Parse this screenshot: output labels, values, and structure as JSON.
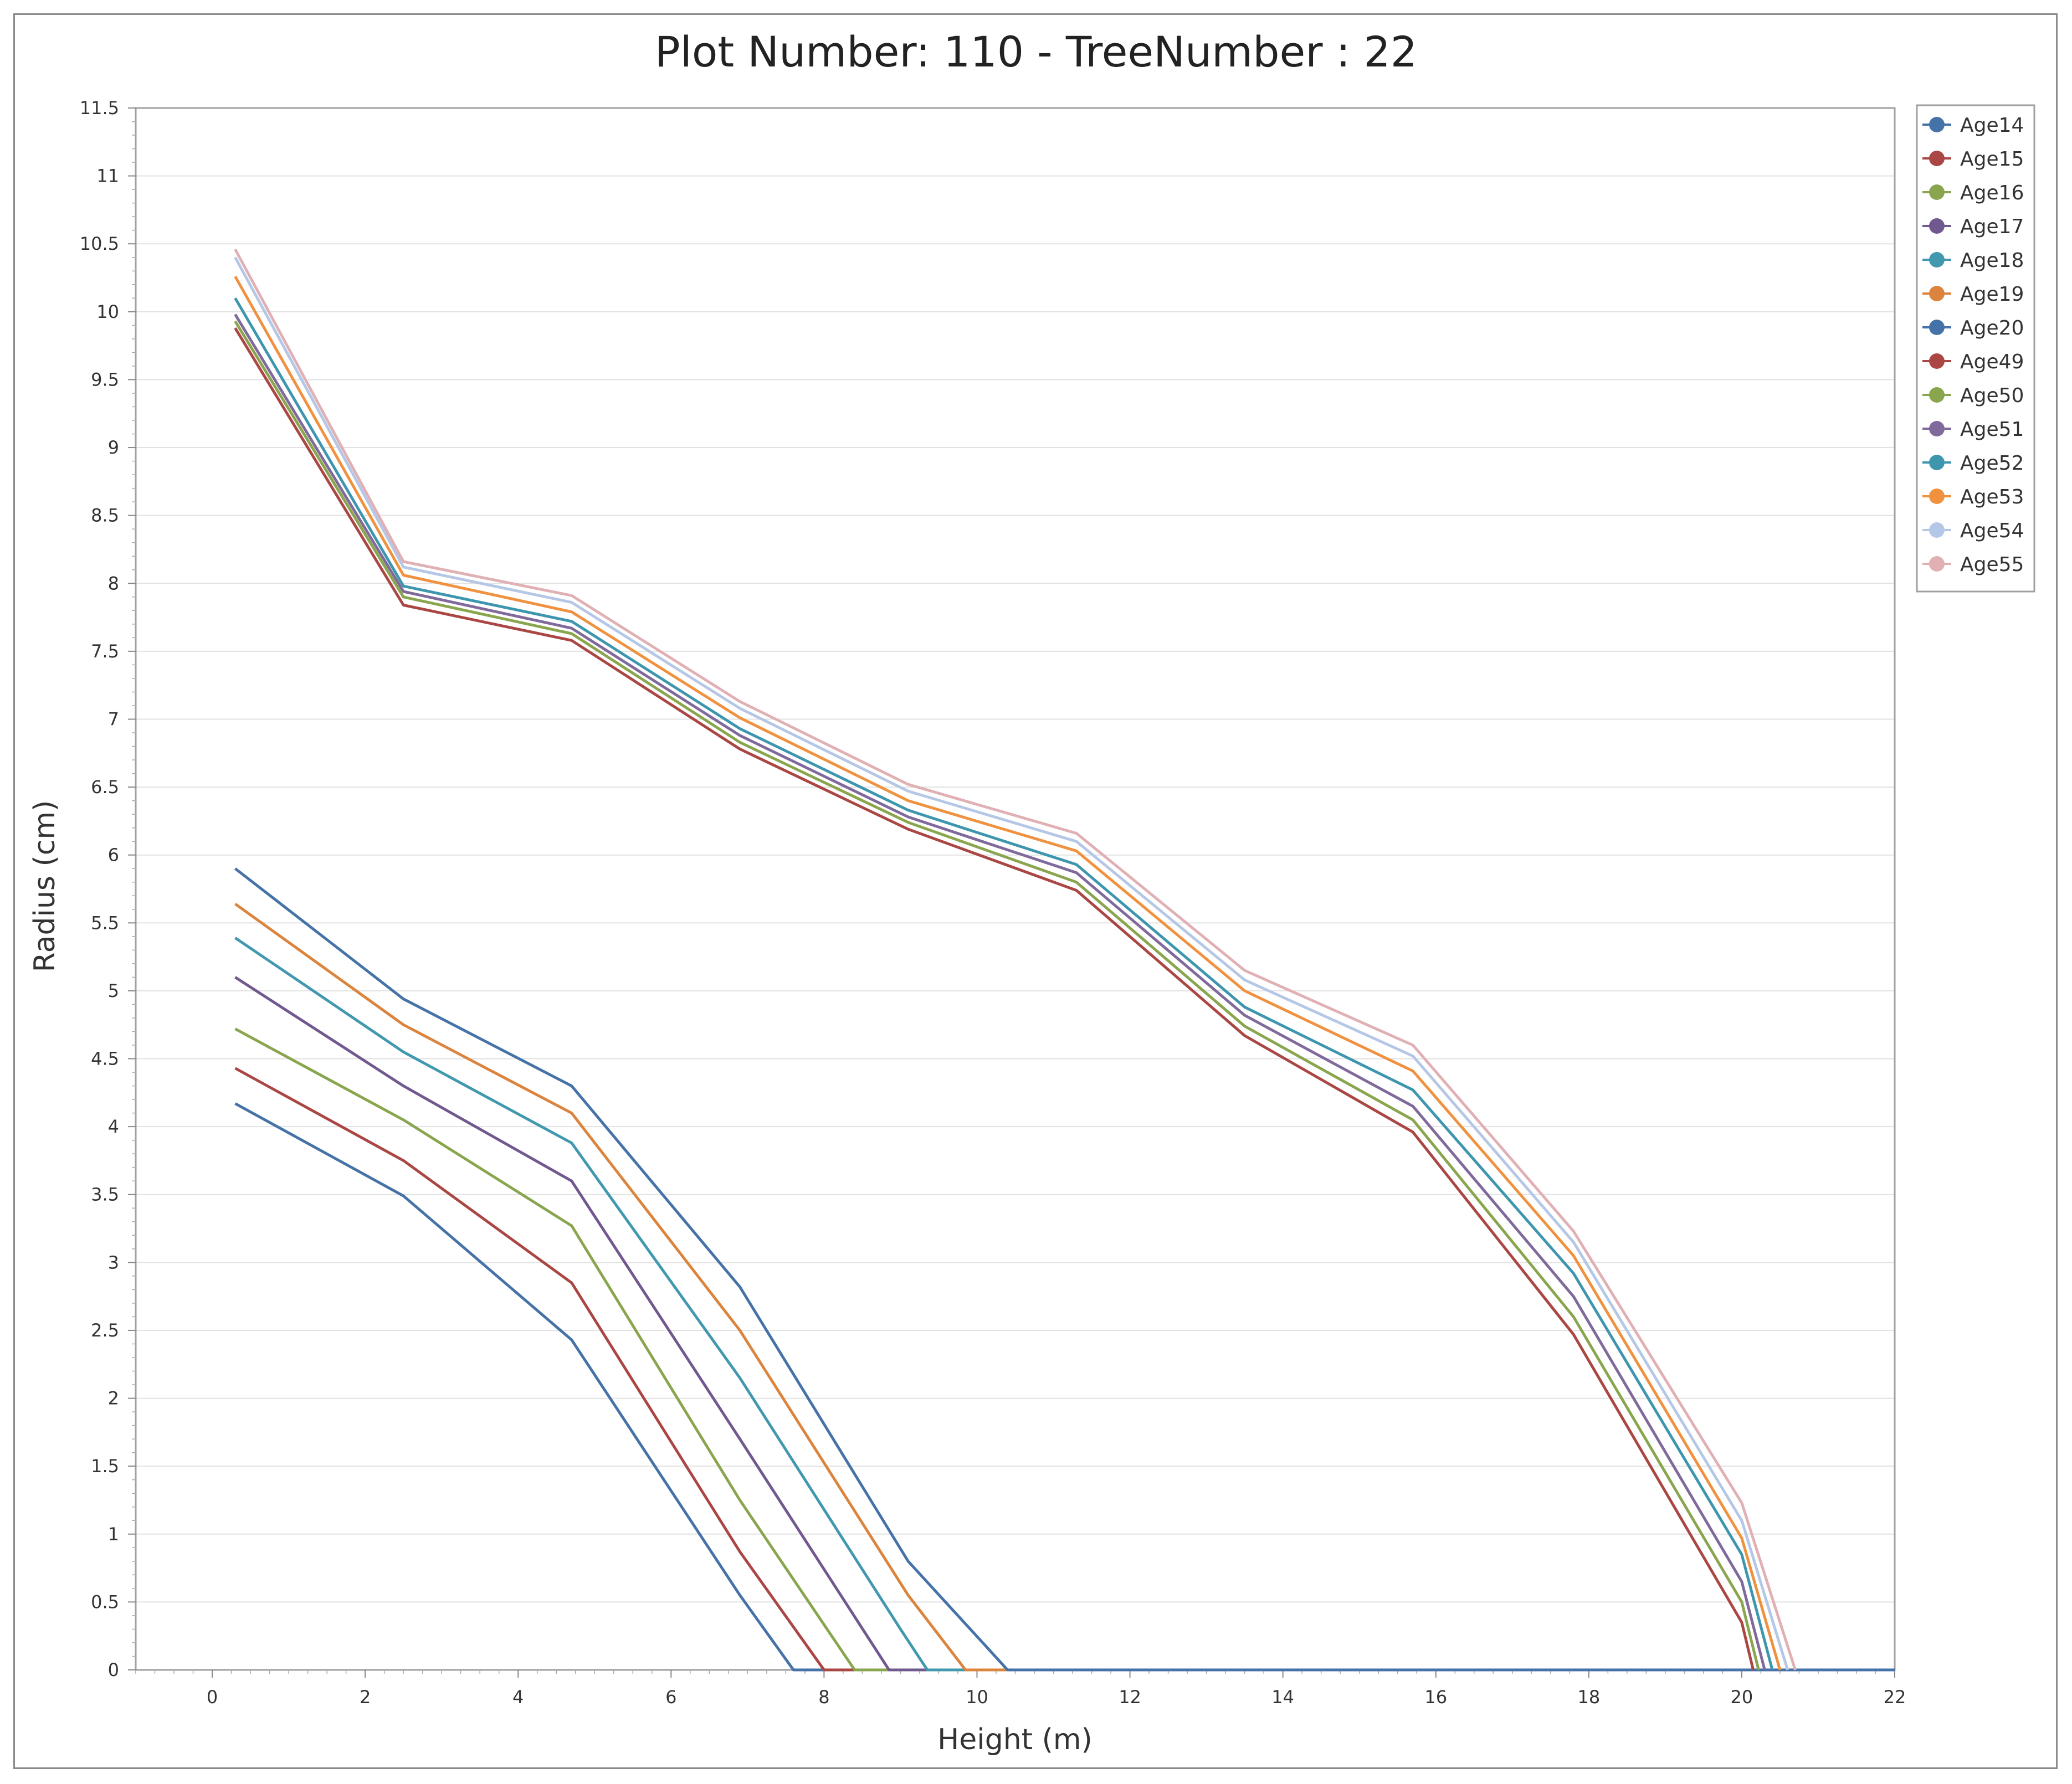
{
  "chart_data": {
    "type": "line",
    "title": "Plot Number: 110 - TreeNumber : 22",
    "xlabel": "Height (m)",
    "ylabel": "Radius (cm)",
    "xlim": [
      -1,
      22
    ],
    "ylim": [
      0,
      11.5
    ],
    "xticks": [
      "0",
      "2",
      "4",
      "6",
      "8",
      "10",
      "12",
      "14",
      "16",
      "18",
      "20",
      "22"
    ],
    "yticks": [
      "0",
      "0.5",
      "1",
      "1.5",
      "2",
      "2.5",
      "3",
      "3.5",
      "4",
      "4.5",
      "5",
      "5.5",
      "6",
      "6.5",
      "7",
      "7.5",
      "8",
      "8.5",
      "9",
      "9.5",
      "10",
      "10.5",
      "11",
      "11.5"
    ],
    "grid": "horizontal",
    "legend_position": "right",
    "series": [
      {
        "name": "Age14",
        "color": "#4572a7",
        "x": [
          0.3,
          2.5,
          4.7,
          6.9,
          7.6,
          22
        ],
        "y": [
          4.17,
          3.49,
          2.43,
          0.55,
          0,
          0
        ]
      },
      {
        "name": "Age15",
        "color": "#aa4643",
        "x": [
          0.3,
          2.5,
          4.7,
          6.9,
          8.0,
          22
        ],
        "y": [
          4.43,
          3.75,
          2.85,
          0.87,
          0,
          0
        ]
      },
      {
        "name": "Age16",
        "color": "#89a54e",
        "x": [
          0.3,
          2.5,
          4.7,
          6.9,
          8.4,
          22
        ],
        "y": [
          4.72,
          4.05,
          3.27,
          1.25,
          0,
          0
        ]
      },
      {
        "name": "Age17",
        "color": "#71588f",
        "x": [
          0.3,
          2.5,
          4.7,
          6.9,
          8.85,
          22
        ],
        "y": [
          5.1,
          4.3,
          3.6,
          1.7,
          0,
          0
        ]
      },
      {
        "name": "Age18",
        "color": "#4198af",
        "x": [
          0.3,
          2.5,
          4.7,
          6.9,
          9.0,
          9.35,
          22
        ],
        "y": [
          5.39,
          4.55,
          3.88,
          2.15,
          0.3,
          0,
          0
        ]
      },
      {
        "name": "Age19",
        "color": "#db843d",
        "x": [
          0.3,
          2.5,
          4.7,
          6.9,
          9.1,
          9.85,
          22
        ],
        "y": [
          5.64,
          4.75,
          4.1,
          2.5,
          0.55,
          0,
          0
        ]
      },
      {
        "name": "Age20",
        "color": "#4572a7",
        "x": [
          0.3,
          2.5,
          4.7,
          6.9,
          9.1,
          10.4,
          22
        ],
        "y": [
          5.9,
          4.94,
          4.3,
          2.82,
          0.8,
          0,
          0
        ]
      },
      {
        "name": "Age49",
        "color": "#aa4643",
        "x": [
          0.3,
          2.5,
          4.7,
          6.9,
          9.1,
          11.3,
          13.5,
          15.7,
          17.8,
          20.0,
          20.15
        ],
        "y": [
          9.88,
          7.84,
          7.58,
          6.78,
          6.19,
          5.74,
          4.67,
          3.96,
          2.47,
          0.35,
          0
        ]
      },
      {
        "name": "Age50",
        "color": "#89a54e",
        "x": [
          0.3,
          2.5,
          4.7,
          6.9,
          9.1,
          11.3,
          13.5,
          15.7,
          17.8,
          20.0,
          20.22
        ],
        "y": [
          9.93,
          7.9,
          7.63,
          6.83,
          6.24,
          5.8,
          4.74,
          4.05,
          2.6,
          0.5,
          0
        ]
      },
      {
        "name": "Age51",
        "color": "#80699b",
        "x": [
          0.3,
          2.5,
          4.7,
          6.9,
          9.1,
          11.3,
          13.5,
          15.7,
          17.8,
          20.0,
          20.3
        ],
        "y": [
          9.98,
          7.94,
          7.67,
          6.88,
          6.28,
          5.87,
          4.82,
          4.15,
          2.75,
          0.65,
          0
        ]
      },
      {
        "name": "Age52",
        "color": "#3d96ae",
        "x": [
          0.3,
          2.5,
          4.7,
          6.9,
          9.1,
          11.3,
          13.5,
          15.7,
          17.8,
          20.0,
          20.4
        ],
        "y": [
          10.1,
          7.98,
          7.72,
          6.93,
          6.33,
          5.93,
          4.88,
          4.27,
          2.92,
          0.85,
          0
        ]
      },
      {
        "name": "Age53",
        "color": "#f0913f",
        "x": [
          0.3,
          2.5,
          4.7,
          6.9,
          9.1,
          11.3,
          13.5,
          15.7,
          17.8,
          20.0,
          20.5
        ],
        "y": [
          10.26,
          8.06,
          7.79,
          7.01,
          6.4,
          6.03,
          5.0,
          4.41,
          3.05,
          0.97,
          0
        ]
      },
      {
        "name": "Age54",
        "color": "#b5c7e6",
        "x": [
          0.3,
          2.5,
          4.7,
          6.9,
          9.1,
          11.3,
          13.5,
          15.7,
          17.8,
          20.0,
          20.6
        ],
        "y": [
          10.4,
          8.12,
          7.86,
          7.08,
          6.47,
          6.1,
          5.08,
          4.52,
          3.15,
          1.1,
          0
        ]
      },
      {
        "name": "Age55",
        "color": "#e0b0b4",
        "x": [
          0.3,
          2.5,
          4.7,
          6.9,
          9.1,
          11.3,
          13.5,
          15.7,
          17.8,
          20.0,
          20.7
        ],
        "y": [
          10.46,
          8.16,
          7.91,
          7.13,
          6.52,
          6.16,
          5.15,
          4.6,
          3.23,
          1.23,
          0
        ]
      }
    ]
  }
}
